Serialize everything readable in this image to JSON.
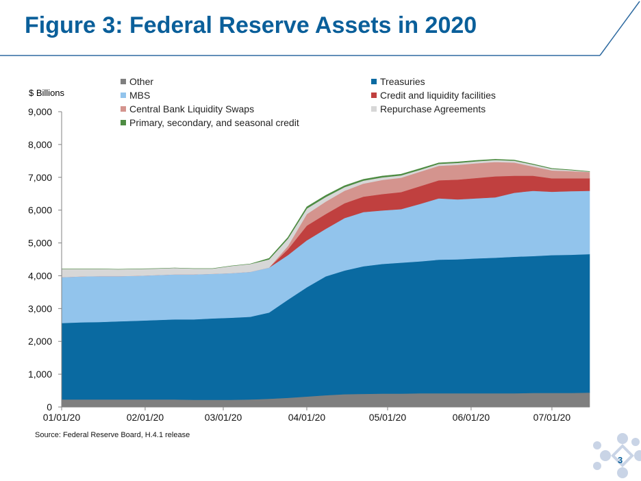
{
  "slide": {
    "title": "Figure 3: Federal Reserve Assets in 2020",
    "source": "Source: Federal Reserve Board, H.4.1 release",
    "page_number": "3"
  },
  "colors": {
    "accent": "#0a5f9a",
    "frame_line": "#2e6aa0",
    "logo": "#c9d4e6"
  },
  "chart_data": {
    "type": "area",
    "stacked": true,
    "unit_label": "$ Billions",
    "title": "",
    "xlabel": "",
    "ylabel": "$ Billions",
    "ylim": [
      0,
      9000
    ],
    "y_ticks": [
      0,
      1000,
      2000,
      3000,
      4000,
      5000,
      6000,
      7000,
      8000,
      9000
    ],
    "y_tick_labels": [
      "0",
      "1,000",
      "2,000",
      "3,000",
      "4,000",
      "5,000",
      "6,000",
      "7,000",
      "8,000",
      "9,000"
    ],
    "x_range": [
      "01/01/20",
      "07/15/20"
    ],
    "x_tick_labels": [
      "01/01/20",
      "02/01/20",
      "03/01/20",
      "04/01/20",
      "05/01/20",
      "06/01/20",
      "07/01/20"
    ],
    "x_tick_values": [
      "2020-01-01",
      "2020-02-01",
      "2020-03-01",
      "2020-04-01",
      "2020-05-01",
      "2020-06-01",
      "2020-07-01"
    ],
    "grid": false,
    "legend_position": "top",
    "x": [
      "2020-01-01",
      "2020-01-08",
      "2020-01-15",
      "2020-01-22",
      "2020-01-29",
      "2020-02-05",
      "2020-02-12",
      "2020-02-19",
      "2020-02-26",
      "2020-03-04",
      "2020-03-11",
      "2020-03-18",
      "2020-03-25",
      "2020-04-01",
      "2020-04-08",
      "2020-04-15",
      "2020-04-22",
      "2020-04-29",
      "2020-05-06",
      "2020-05-13",
      "2020-05-20",
      "2020-05-27",
      "2020-06-03",
      "2020-06-10",
      "2020-06-17",
      "2020-06-24",
      "2020-07-01",
      "2020-07-08",
      "2020-07-15"
    ],
    "series": [
      {
        "name": "Other",
        "color": "#7f7f7f",
        "values": [
          230,
          230,
          230,
          230,
          230,
          230,
          230,
          220,
          220,
          220,
          230,
          250,
          280,
          320,
          360,
          390,
          400,
          410,
          410,
          420,
          420,
          420,
          420,
          420,
          420,
          430,
          430,
          430,
          440
        ]
      },
      {
        "name": "Treasuries",
        "color": "#0a6aa1",
        "values": [
          2330,
          2350,
          2360,
          2380,
          2400,
          2420,
          2440,
          2450,
          2480,
          2500,
          2520,
          2630,
          2990,
          3330,
          3620,
          3770,
          3890,
          3950,
          3990,
          4020,
          4070,
          4080,
          4110,
          4130,
          4160,
          4170,
          4200,
          4210,
          4220
        ]
      },
      {
        "name": "MBS",
        "color": "#92c4ec",
        "values": [
          1400,
          1400,
          1400,
          1380,
          1370,
          1370,
          1370,
          1370,
          1360,
          1360,
          1370,
          1370,
          1360,
          1430,
          1450,
          1600,
          1650,
          1630,
          1630,
          1750,
          1870,
          1830,
          1830,
          1840,
          1950,
          1990,
          1930,
          1940,
          1930
        ]
      },
      {
        "name": "Credit and liquidity facilities",
        "color": "#c0403f",
        "values": [
          0,
          0,
          0,
          0,
          0,
          0,
          0,
          0,
          0,
          0,
          0,
          0,
          180,
          450,
          450,
          450,
          470,
          500,
          520,
          540,
          550,
          600,
          620,
          640,
          520,
          460,
          410,
          390,
          380
        ]
      },
      {
        "name": "Central Bank Liquidity Swaps",
        "color": "#d4948e",
        "values": [
          0,
          0,
          0,
          0,
          0,
          0,
          0,
          0,
          0,
          0,
          0,
          0,
          100,
          350,
          380,
          380,
          400,
          430,
          440,
          440,
          440,
          450,
          450,
          440,
          400,
          280,
          240,
          220,
          190
        ]
      },
      {
        "name": "Repurchase Agreements",
        "color": "#d7d7d7",
        "values": [
          250,
          230,
          220,
          210,
          210,
          200,
          200,
          180,
          160,
          220,
          240,
          250,
          220,
          170,
          140,
          110,
          90,
          80,
          70,
          60,
          60,
          60,
          60,
          60,
          60,
          60,
          50,
          30,
          10
        ]
      },
      {
        "name": "Primary, secondary, and seasonal credit",
        "color": "#4e8c43",
        "values": [
          0,
          0,
          0,
          0,
          0,
          0,
          0,
          0,
          0,
          0,
          0,
          30,
          40,
          50,
          50,
          45,
          40,
          40,
          35,
          35,
          30,
          30,
          25,
          20,
          18,
          15,
          12,
          10,
          8
        ]
      }
    ]
  }
}
